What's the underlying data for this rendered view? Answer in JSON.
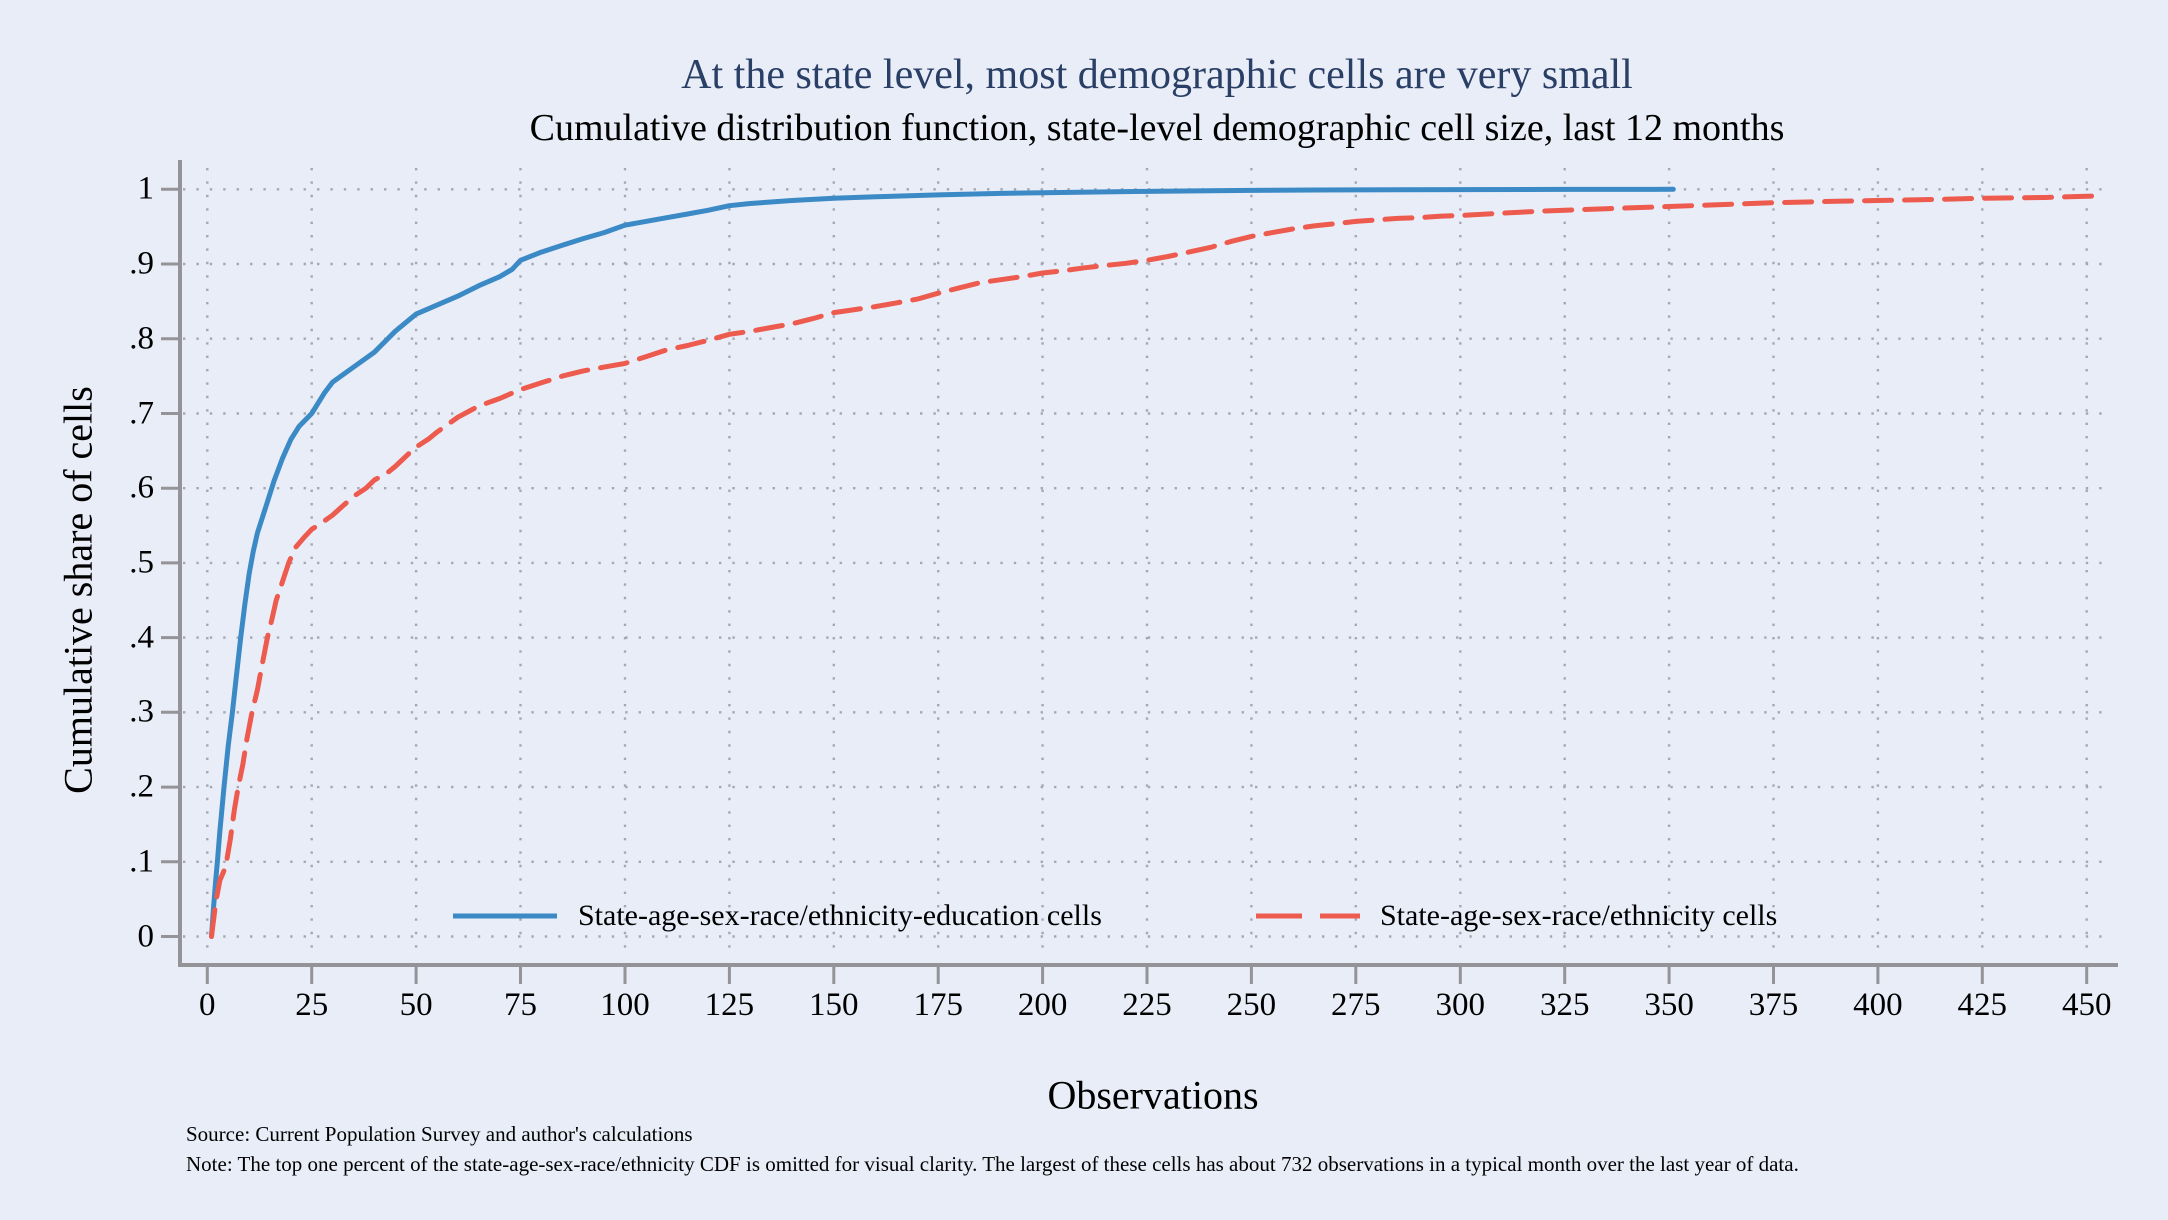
{
  "chart_data": {
    "type": "line",
    "title": "At the state level, most demographic cells are very small",
    "subtitle": "Cumulative distribution function, state-level demographic cell size, last 12 months",
    "xlabel": "Observations",
    "ylabel": "Cumulative share of cells",
    "xlim": [
      0,
      455
    ],
    "ylim": [
      0,
      1
    ],
    "grid": "dotted horizontal and vertical gridlines at every tick",
    "legend_position": "inside plot, bottom center, no frame",
    "x_tick_values": [
      0,
      25,
      50,
      75,
      100,
      125,
      150,
      175,
      200,
      225,
      250,
      275,
      300,
      325,
      350,
      375,
      400,
      425,
      450
    ],
    "x_tick_labels": [
      "0",
      "25",
      "50",
      "75",
      "100",
      "125",
      "150",
      "175",
      "200",
      "225",
      "250",
      "275",
      "300",
      "325",
      "350",
      "375",
      "400",
      "425",
      "450"
    ],
    "y_tick_values": [
      0,
      0.1,
      0.2,
      0.3,
      0.4,
      0.5,
      0.6,
      0.7,
      0.8,
      0.9,
      1
    ],
    "y_tick_labels": [
      "0",
      ".1",
      ".2",
      ".3",
      ".4",
      ".5",
      ".6",
      ".7",
      ".8",
      ".9",
      "1"
    ],
    "series": [
      {
        "name": "State-age-sex-race/ethnicity-education cells",
        "color": "#3b8ac6",
        "style": "solid",
        "points": [
          [
            1,
            0
          ],
          [
            1.5,
            0.04
          ],
          [
            2,
            0.075
          ],
          [
            2.5,
            0.105
          ],
          [
            3,
            0.14
          ],
          [
            4,
            0.2
          ],
          [
            5,
            0.255
          ],
          [
            6,
            0.3
          ],
          [
            7,
            0.35
          ],
          [
            8,
            0.4
          ],
          [
            9,
            0.445
          ],
          [
            10,
            0.485
          ],
          [
            11,
            0.515
          ],
          [
            12,
            0.54
          ],
          [
            14,
            0.575
          ],
          [
            16,
            0.61
          ],
          [
            18,
            0.64
          ],
          [
            20,
            0.665
          ],
          [
            22,
            0.683
          ],
          [
            25,
            0.7
          ],
          [
            28,
            0.727
          ],
          [
            30,
            0.742
          ],
          [
            35,
            0.762
          ],
          [
            40,
            0.782
          ],
          [
            45,
            0.81
          ],
          [
            50,
            0.833
          ],
          [
            55,
            0.845
          ],
          [
            60,
            0.857
          ],
          [
            65,
            0.871
          ],
          [
            70,
            0.883
          ],
          [
            73,
            0.893
          ],
          [
            75,
            0.905
          ],
          [
            80,
            0.916
          ],
          [
            85,
            0.925
          ],
          [
            90,
            0.934
          ],
          [
            95,
            0.942
          ],
          [
            100,
            0.952
          ],
          [
            105,
            0.957
          ],
          [
            110,
            0.962
          ],
          [
            115,
            0.967
          ],
          [
            120,
            0.972
          ],
          [
            125,
            0.978
          ],
          [
            130,
            0.981
          ],
          [
            140,
            0.985
          ],
          [
            150,
            0.988
          ],
          [
            160,
            0.99
          ],
          [
            175,
            0.9925
          ],
          [
            190,
            0.9945
          ],
          [
            200,
            0.9955
          ],
          [
            215,
            0.9965
          ],
          [
            225,
            0.9972
          ],
          [
            240,
            0.998
          ],
          [
            250,
            0.9985
          ],
          [
            265,
            0.999
          ],
          [
            275,
            0.9992
          ],
          [
            300,
            0.9996
          ],
          [
            325,
            0.9998
          ],
          [
            351,
            1.0
          ]
        ]
      },
      {
        "name": "State-age-sex-race/ethnicity cells",
        "color": "#ed5a4e",
        "style": "dashed",
        "points": [
          [
            1,
            0
          ],
          [
            2,
            0.045
          ],
          [
            3,
            0.075
          ],
          [
            4,
            0.088
          ],
          [
            4.6,
            0.1
          ],
          [
            5.5,
            0.13
          ],
          [
            6.5,
            0.17
          ],
          [
            7.4,
            0.2
          ],
          [
            8.5,
            0.23
          ],
          [
            9.5,
            0.265
          ],
          [
            10.7,
            0.3
          ],
          [
            12,
            0.33
          ],
          [
            13,
            0.36
          ],
          [
            14.4,
            0.4
          ],
          [
            15.5,
            0.425
          ],
          [
            16.5,
            0.45
          ],
          [
            18,
            0.475
          ],
          [
            19.5,
            0.5
          ],
          [
            21,
            0.52
          ],
          [
            23,
            0.533
          ],
          [
            25,
            0.545
          ],
          [
            27,
            0.552
          ],
          [
            30,
            0.564
          ],
          [
            32,
            0.574
          ],
          [
            35,
            0.589
          ],
          [
            38,
            0.6
          ],
          [
            40,
            0.611
          ],
          [
            43,
            0.62
          ],
          [
            45,
            0.629
          ],
          [
            48,
            0.645
          ],
          [
            50,
            0.655
          ],
          [
            53,
            0.666
          ],
          [
            55,
            0.675
          ],
          [
            58,
            0.687
          ],
          [
            60,
            0.695
          ],
          [
            63,
            0.704
          ],
          [
            65,
            0.71
          ],
          [
            70,
            0.72
          ],
          [
            75,
            0.732
          ],
          [
            80,
            0.741
          ],
          [
            85,
            0.75
          ],
          [
            90,
            0.757
          ],
          [
            95,
            0.762
          ],
          [
            100,
            0.767
          ],
          [
            105,
            0.776
          ],
          [
            110,
            0.785
          ],
          [
            115,
            0.791
          ],
          [
            120,
            0.798
          ],
          [
            125,
            0.806
          ],
          [
            130,
            0.81
          ],
          [
            135,
            0.815
          ],
          [
            140,
            0.82
          ],
          [
            145,
            0.827
          ],
          [
            150,
            0.835
          ],
          [
            155,
            0.839
          ],
          [
            160,
            0.843
          ],
          [
            165,
            0.848
          ],
          [
            170,
            0.853
          ],
          [
            175,
            0.861
          ],
          [
            180,
            0.868
          ],
          [
            185,
            0.875
          ],
          [
            190,
            0.879
          ],
          [
            195,
            0.883
          ],
          [
            200,
            0.888
          ],
          [
            205,
            0.891
          ],
          [
            210,
            0.895
          ],
          [
            215,
            0.898
          ],
          [
            220,
            0.901
          ],
          [
            225,
            0.905
          ],
          [
            230,
            0.91
          ],
          [
            235,
            0.916
          ],
          [
            240,
            0.922
          ],
          [
            245,
            0.93
          ],
          [
            250,
            0.937
          ],
          [
            255,
            0.942
          ],
          [
            260,
            0.947
          ],
          [
            265,
            0.951
          ],
          [
            270,
            0.954
          ],
          [
            275,
            0.957
          ],
          [
            280,
            0.959
          ],
          [
            285,
            0.961
          ],
          [
            290,
            0.962
          ],
          [
            295,
            0.964
          ],
          [
            300,
            0.965
          ],
          [
            310,
            0.968
          ],
          [
            320,
            0.971
          ],
          [
            325,
            0.972
          ],
          [
            335,
            0.974
          ],
          [
            350,
            0.977
          ],
          [
            360,
            0.979
          ],
          [
            375,
            0.982
          ],
          [
            390,
            0.984
          ],
          [
            400,
            0.985
          ],
          [
            410,
            0.986
          ],
          [
            425,
            0.988
          ],
          [
            440,
            0.989
          ],
          [
            452,
            0.991
          ]
        ]
      }
    ],
    "source": "Source: Current Population Survey and author's calculations",
    "note": "Note: The top one percent of the state-age-sex-race/ethnicity CDF is omitted for visual clarity. The largest of these cells has about 732 observations in a typical month over the last year of data."
  },
  "colors": {
    "background": "#e9edf8",
    "title_text": "#2a3f66",
    "body_text": "#000000",
    "axis_line": "#939398",
    "grid_dots": "#a5a8b2",
    "series_blue": "#3b8ac6",
    "series_red": "#ed5a4e"
  }
}
